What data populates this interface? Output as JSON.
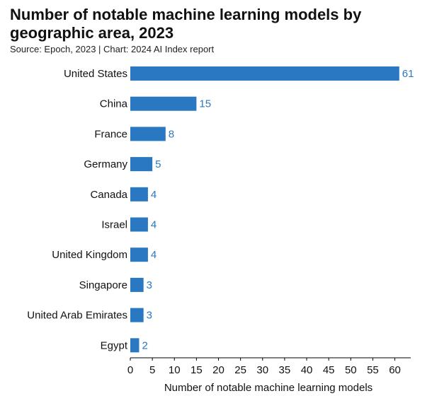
{
  "chart_data": {
    "type": "bar",
    "orientation": "horizontal",
    "title": "Number of notable machine learning models by geographic area, 2023",
    "source": "Source: Epoch, 2023 | Chart: 2024 AI Index report",
    "categories": [
      "United States",
      "China",
      "France",
      "Germany",
      "Canada",
      "Israel",
      "United Kingdom",
      "Singapore",
      "United Arab Emirates",
      "Egypt"
    ],
    "values": [
      61,
      15,
      8,
      5,
      4,
      4,
      4,
      3,
      3,
      2
    ],
    "xlabel": "Number of notable machine learning models",
    "ylabel": "",
    "xlim": [
      0,
      62
    ],
    "xticks": [
      0,
      5,
      10,
      15,
      20,
      25,
      30,
      35,
      40,
      45,
      50,
      55,
      60
    ],
    "bar_color": "#2a78c2",
    "label_color": "#2a78c2"
  }
}
